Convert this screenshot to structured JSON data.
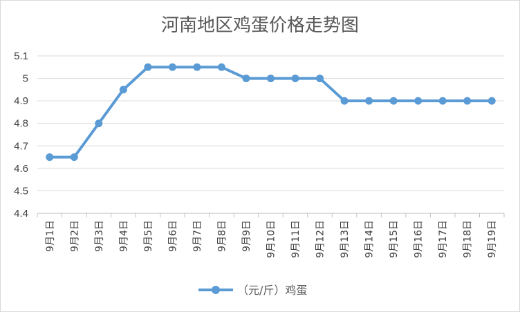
{
  "chart_data": {
    "type": "line",
    "title": "河南地区鸡蛋价格走势图",
    "xlabel": "",
    "ylabel": "",
    "categories": [
      "9月1日",
      "9月2日",
      "9月3日",
      "9月4日",
      "9月5日",
      "9月6日",
      "9月7日",
      "9月8日",
      "9月9日",
      "9月10日",
      "9月11日",
      "9月12日",
      "9月13日",
      "9月14日",
      "9月15日",
      "9月16日",
      "9月17日",
      "9月18日",
      "9月19日"
    ],
    "series": [
      {
        "name": "（元/斤）鸡蛋",
        "values": [
          4.65,
          4.65,
          4.8,
          4.95,
          5.05,
          5.05,
          5.05,
          5.05,
          5.0,
          5.0,
          5.0,
          5.0,
          4.9,
          4.9,
          4.9,
          4.9,
          4.9,
          4.9,
          4.9
        ]
      }
    ],
    "ylim": [
      4.4,
      5.1
    ],
    "yticks": [
      "4.4",
      "4.5",
      "4.6",
      "4.7",
      "4.8",
      "4.9",
      "5",
      "5.1"
    ],
    "grid": true,
    "legend": "bottom",
    "colors": {
      "line": "#5b9bd5",
      "grid": "#d9d9d9",
      "axis": "#bfbfbf",
      "text": "#404040"
    }
  }
}
